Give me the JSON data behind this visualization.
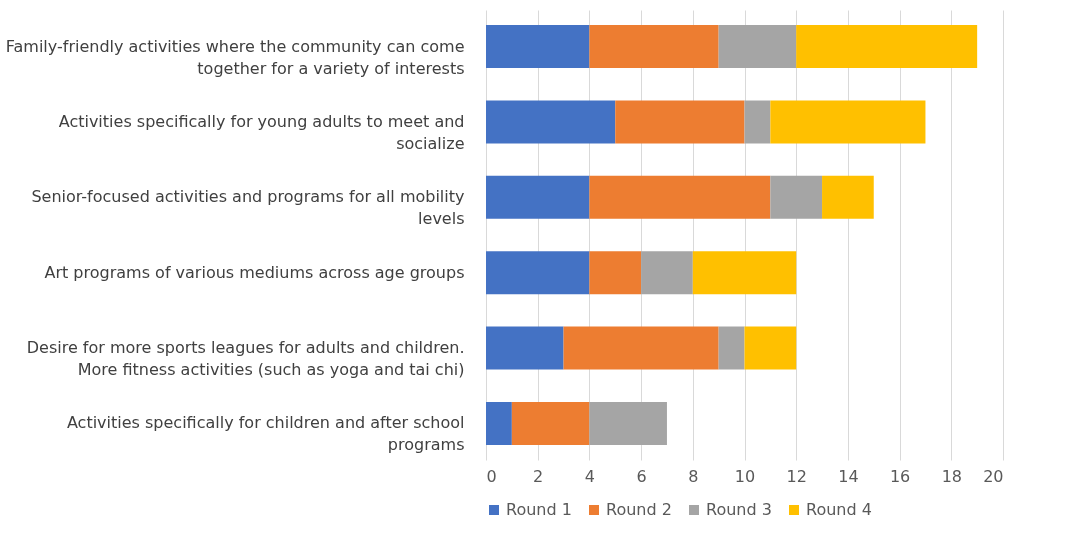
{
  "chart_data": {
    "type": "bar",
    "orientation": "horizontal",
    "stacked": true,
    "categories": [
      "Family-friendly activities where the community can come together for a variety of interests",
      "Activities specifically for young adults to meet and socialize",
      "Senior-focused activities and programs for all mobility levels",
      "Art programs of various mediums across age groups",
      "Desire for more sports leagues for adults and children. More fitness activities (such as yoga and tai chi)",
      "Activities specifically for children and after school programs"
    ],
    "series": [
      {
        "name": "Round 1",
        "color": "#4472c4",
        "values": [
          4,
          5,
          4,
          4,
          3,
          1
        ]
      },
      {
        "name": "Round 2",
        "color": "#ed7d31",
        "values": [
          5,
          5,
          7,
          2,
          6,
          3
        ]
      },
      {
        "name": "Round 3",
        "color": "#a5a5a5",
        "values": [
          3,
          1,
          2,
          2,
          1,
          3
        ]
      },
      {
        "name": "Round 4",
        "color": "#ffc000",
        "values": [
          7,
          6,
          2,
          4,
          2,
          0
        ]
      }
    ],
    "xlim": [
      0,
      20
    ],
    "xticks": [
      0,
      2,
      4,
      6,
      8,
      10,
      12,
      14,
      16,
      18,
      20
    ],
    "grid": "x",
    "legend": "bottom"
  }
}
